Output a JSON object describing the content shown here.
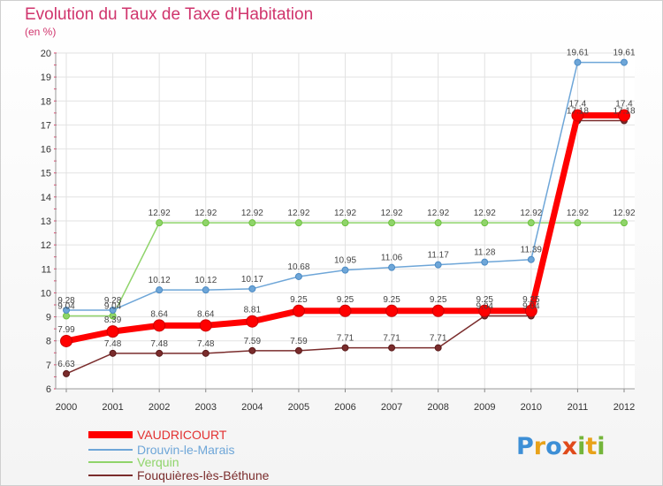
{
  "title": "Evolution du Taux de Taxe d'Habitation",
  "subtitle": "(en %)",
  "logo": {
    "text": "Proxiti",
    "letters": [
      {
        "ch": "P",
        "color": "#3d8fd6"
      },
      {
        "ch": "r",
        "color": "#e8a21a"
      },
      {
        "ch": "o",
        "color": "#3d8fd6"
      },
      {
        "ch": "x",
        "color": "#e04a1b"
      },
      {
        "ch": "i",
        "color": "#74b53a"
      },
      {
        "ch": "t",
        "color": "#e8a21a"
      },
      {
        "ch": "i",
        "color": "#74b53a"
      }
    ]
  },
  "chart_data": {
    "type": "line",
    "title": "Evolution du Taux de Taxe d'Habitation",
    "subtitle": "(en %)",
    "x": [
      "2000",
      "2001",
      "2002",
      "2003",
      "2004",
      "2005",
      "2006",
      "2007",
      "2008",
      "2009",
      "2010",
      "2011",
      "2012"
    ],
    "yticks": [
      6,
      7,
      8,
      9,
      10,
      11,
      12,
      13,
      14,
      15,
      16,
      17,
      18,
      19,
      20
    ],
    "ylim": [
      6,
      20
    ],
    "grid": true,
    "legend_position": "bottom-left",
    "series": [
      {
        "name": "VAUDRICOURT",
        "color": "#ff0000",
        "marker_color": "#cc0000",
        "width": "thick",
        "values": [
          7.99,
          8.39,
          8.64,
          8.64,
          8.81,
          9.25,
          9.25,
          9.25,
          9.25,
          9.25,
          9.25,
          17.4,
          17.4
        ],
        "labels": [
          "7.99",
          "8.39",
          "8.64",
          "8.64",
          "8.81",
          "9.25",
          "9.25",
          "9.25",
          "9.25",
          "9.25",
          "9.25",
          "17.4",
          "17.4"
        ]
      },
      {
        "name": "Drouvin-le-Marais",
        "color": "#6ea6d8",
        "marker_color": "#4a8ac4",
        "width": "thin",
        "values": [
          9.28,
          9.28,
          10.12,
          10.12,
          10.17,
          10.68,
          10.95,
          11.06,
          11.17,
          11.28,
          11.39,
          19.61,
          19.61
        ],
        "labels": [
          "9.28",
          "9.28",
          "10.12",
          "10.12",
          "10.17",
          "10.68",
          "10.95",
          "11.06",
          "11.17",
          "11.28",
          "11.39",
          "19.61",
          "19.61"
        ]
      },
      {
        "name": "Verquin",
        "color": "#8fd46a",
        "marker_color": "#6cc03e",
        "width": "thin",
        "values": [
          9.04,
          9.04,
          12.92,
          12.92,
          12.92,
          12.92,
          12.92,
          12.92,
          12.92,
          12.92,
          12.92,
          12.92,
          12.92
        ],
        "labels": [
          "9.04",
          "9.04",
          "12.92",
          "12.92",
          "12.92",
          "12.92",
          "12.92",
          "12.92",
          "12.92",
          "12.92",
          "12.92",
          "12.92",
          "12.92"
        ]
      },
      {
        "name": "Fouquières-lès-Béthune",
        "color": "#7a2c2c",
        "marker_color": "#5a1a1a",
        "width": "thin",
        "values": [
          6.63,
          7.48,
          7.48,
          7.48,
          7.59,
          7.59,
          7.71,
          7.71,
          7.71,
          9.04,
          9.04,
          17.18,
          17.18
        ],
        "labels": [
          "6.63",
          "7.48",
          "7.48",
          "7.48",
          "7.59",
          "7.59",
          "7.71",
          "7.71",
          "7.71",
          "9.04",
          "9.04",
          "17.18",
          "17.18"
        ]
      }
    ]
  }
}
